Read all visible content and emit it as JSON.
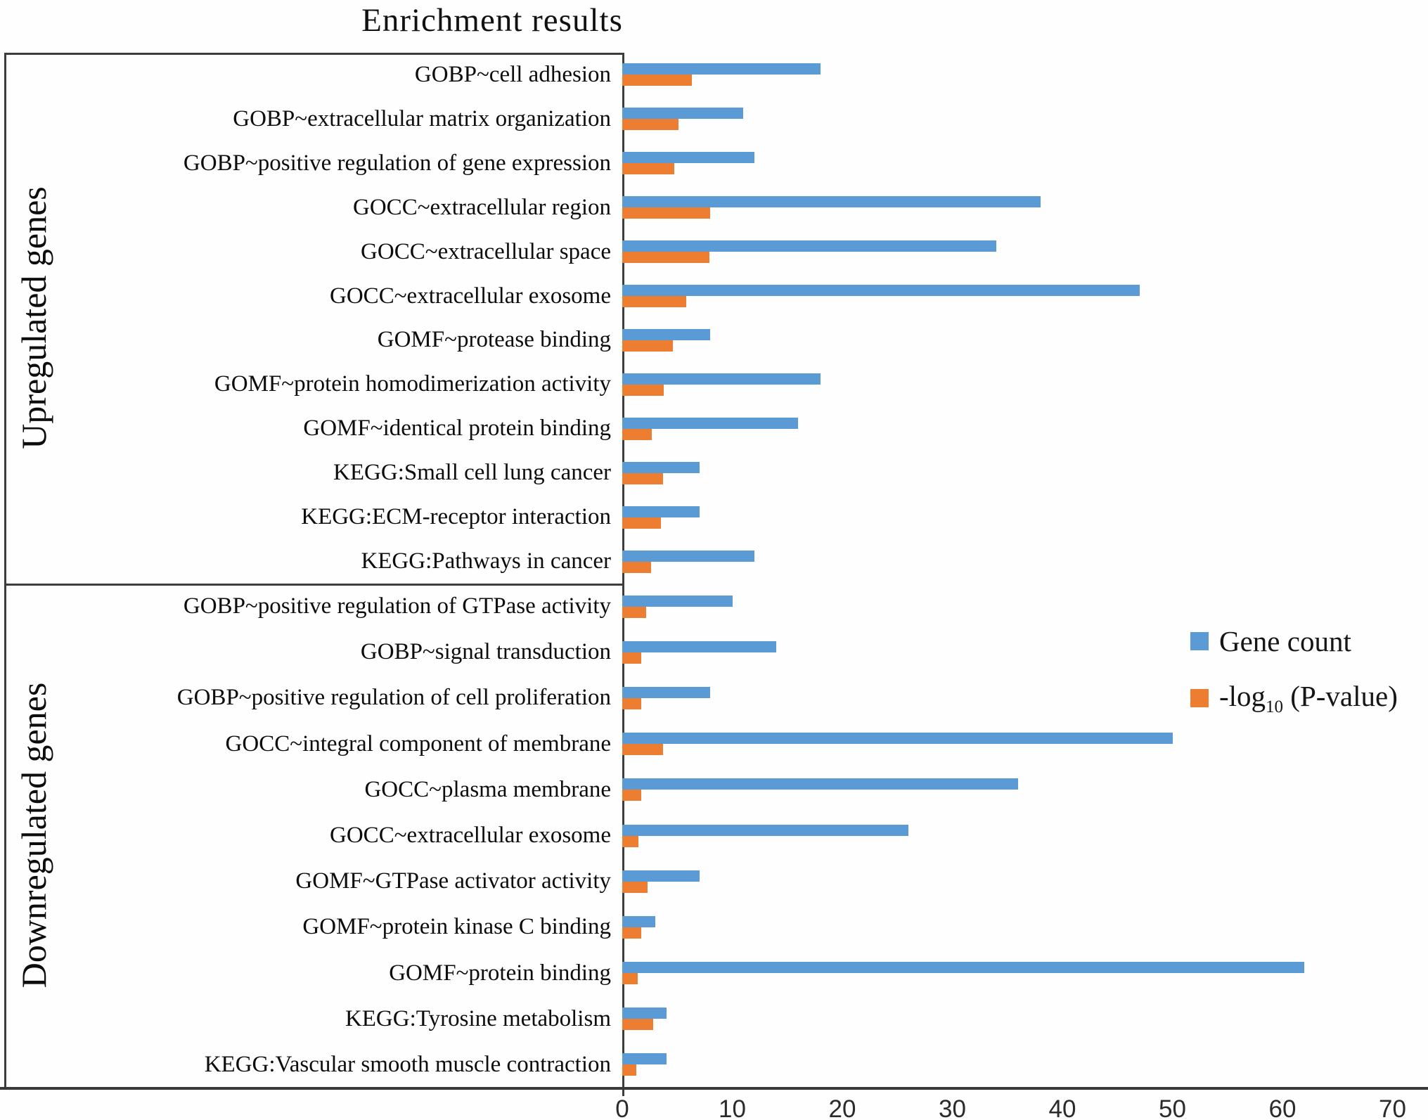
{
  "colors": {
    "gene_count": "#5B9BD5",
    "neg_log10_p": "#ED7D31",
    "axis_line": "#3a3a3a"
  },
  "legend": {
    "gene_count_label": "Gene count",
    "pvalue_prefix": "-log",
    "pvalue_sub": "10",
    "pvalue_suffix": " (P-value)"
  },
  "chart_data": {
    "type": "bar",
    "orientation": "horizontal",
    "title": "Enrichment results",
    "xlim": [
      0,
      70
    ],
    "x_ticks": [
      0,
      10,
      20,
      30,
      40,
      50,
      60,
      70
    ],
    "grid": false,
    "legend_position": "right",
    "series_names": [
      "Gene count",
      "-log10 (P-value)"
    ],
    "groups": [
      {
        "name": "Upregulated genes",
        "rows": [
          {
            "label": "GOBP~cell adhesion",
            "gene_count": 18,
            "neg_log10_p": 6.3
          },
          {
            "label": "GOBP~extracellular matrix organization",
            "gene_count": 11,
            "neg_log10_p": 5.1
          },
          {
            "label": "GOBP~positive regulation of gene expression",
            "gene_count": 12,
            "neg_log10_p": 4.7
          },
          {
            "label": "GOCC~extracellular region",
            "gene_count": 38,
            "neg_log10_p": 8.0
          },
          {
            "label": "GOCC~extracellular space",
            "gene_count": 34,
            "neg_log10_p": 7.9
          },
          {
            "label": "GOCC~extracellular exosome",
            "gene_count": 47,
            "neg_log10_p": 5.8
          },
          {
            "label": "GOMF~protease binding",
            "gene_count": 8,
            "neg_log10_p": 4.6
          },
          {
            "label": "GOMF~protein homodimerization activity",
            "gene_count": 18,
            "neg_log10_p": 3.8
          },
          {
            "label": "GOMF~identical protein binding",
            "gene_count": 16,
            "neg_log10_p": 2.7
          },
          {
            "label": "KEGG:Small cell lung cancer",
            "gene_count": 7,
            "neg_log10_p": 3.7
          },
          {
            "label": "KEGG:ECM-receptor interaction",
            "gene_count": 7,
            "neg_log10_p": 3.5
          },
          {
            "label": "KEGG:Pathways in cancer",
            "gene_count": 12,
            "neg_log10_p": 2.6
          }
        ]
      },
      {
        "name": "Downregulated genes",
        "rows": [
          {
            "label": "GOBP~positive regulation of GTPase activity",
            "gene_count": 10,
            "neg_log10_p": 2.2
          },
          {
            "label": "GOBP~signal transduction",
            "gene_count": 14,
            "neg_log10_p": 1.7
          },
          {
            "label": "GOBP~positive regulation of cell proliferation",
            "gene_count": 8,
            "neg_log10_p": 1.7
          },
          {
            "label": "GOCC~integral component of membrane",
            "gene_count": 50,
            "neg_log10_p": 3.7
          },
          {
            "label": "GOCC~plasma membrane",
            "gene_count": 36,
            "neg_log10_p": 1.7
          },
          {
            "label": "GOCC~extracellular exosome",
            "gene_count": 26,
            "neg_log10_p": 1.5
          },
          {
            "label": "GOMF~GTPase activator activity",
            "gene_count": 7,
            "neg_log10_p": 2.3
          },
          {
            "label": "GOMF~protein kinase C binding",
            "gene_count": 3,
            "neg_log10_p": 1.7
          },
          {
            "label": "GOMF~protein binding",
            "gene_count": 62,
            "neg_log10_p": 1.4
          },
          {
            "label": "KEGG:Tyrosine metabolism",
            "gene_count": 4,
            "neg_log10_p": 2.8
          },
          {
            "label": "KEGG:Vascular smooth muscle contraction",
            "gene_count": 4,
            "neg_log10_p": 1.3
          }
        ]
      }
    ]
  }
}
